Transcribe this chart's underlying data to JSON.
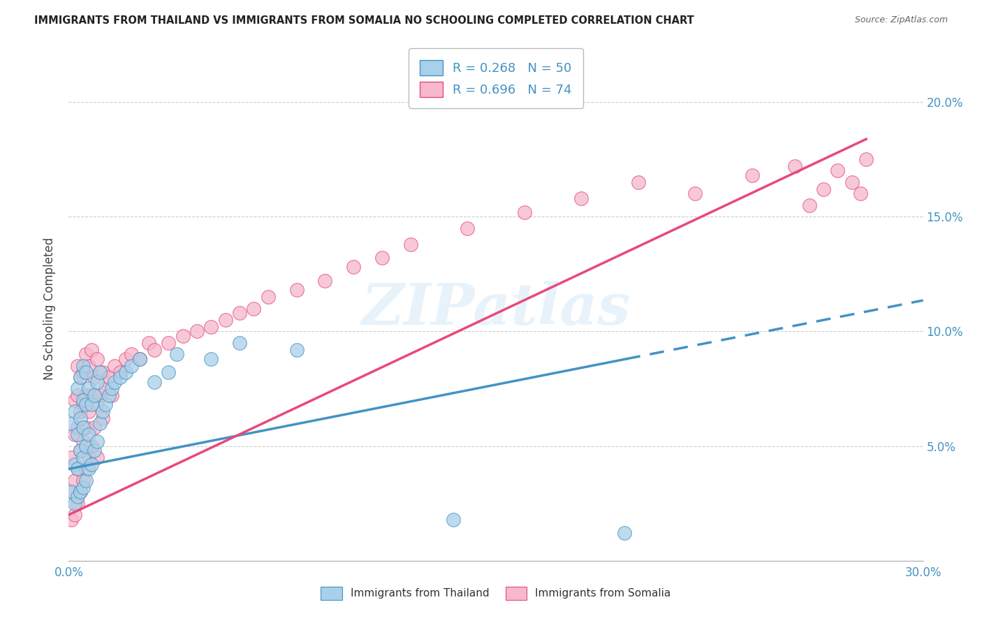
{
  "title": "IMMIGRANTS FROM THAILAND VS IMMIGRANTS FROM SOMALIA NO SCHOOLING COMPLETED CORRELATION CHART",
  "source": "Source: ZipAtlas.com",
  "ylabel": "No Schooling Completed",
  "xlim": [
    0.0,
    0.3
  ],
  "ylim": [
    0.0,
    0.22
  ],
  "xticks": [
    0.0,
    0.05,
    0.1,
    0.15,
    0.2,
    0.25,
    0.3
  ],
  "yticks": [
    0.0,
    0.05,
    0.1,
    0.15,
    0.2
  ],
  "thailand_R": 0.268,
  "thailand_N": 50,
  "somalia_R": 0.696,
  "somalia_N": 74,
  "thailand_color": "#a8d0e8",
  "somalia_color": "#f5b8cc",
  "thailand_line_color": "#4393c3",
  "somalia_line_color": "#e8497a",
  "watermark_text": "ZIPatlas",
  "thailand_scatter_x": [
    0.001,
    0.001,
    0.002,
    0.002,
    0.002,
    0.003,
    0.003,
    0.003,
    0.003,
    0.004,
    0.004,
    0.004,
    0.004,
    0.005,
    0.005,
    0.005,
    0.005,
    0.005,
    0.006,
    0.006,
    0.006,
    0.006,
    0.007,
    0.007,
    0.007,
    0.008,
    0.008,
    0.009,
    0.009,
    0.01,
    0.01,
    0.011,
    0.011,
    0.012,
    0.013,
    0.014,
    0.015,
    0.016,
    0.018,
    0.02,
    0.022,
    0.025,
    0.03,
    0.035,
    0.038,
    0.05,
    0.06,
    0.08,
    0.135,
    0.195
  ],
  "thailand_scatter_y": [
    0.03,
    0.06,
    0.025,
    0.042,
    0.065,
    0.028,
    0.04,
    0.055,
    0.075,
    0.03,
    0.048,
    0.062,
    0.08,
    0.032,
    0.045,
    0.058,
    0.07,
    0.085,
    0.035,
    0.05,
    0.068,
    0.082,
    0.04,
    0.055,
    0.075,
    0.042,
    0.068,
    0.048,
    0.072,
    0.052,
    0.078,
    0.06,
    0.082,
    0.065,
    0.068,
    0.072,
    0.075,
    0.078,
    0.08,
    0.082,
    0.085,
    0.088,
    0.078,
    0.082,
    0.09,
    0.088,
    0.095,
    0.092,
    0.018,
    0.012
  ],
  "somalia_scatter_x": [
    0.001,
    0.001,
    0.001,
    0.002,
    0.002,
    0.002,
    0.002,
    0.003,
    0.003,
    0.003,
    0.003,
    0.003,
    0.004,
    0.004,
    0.004,
    0.004,
    0.005,
    0.005,
    0.005,
    0.005,
    0.006,
    0.006,
    0.006,
    0.006,
    0.007,
    0.007,
    0.007,
    0.008,
    0.008,
    0.008,
    0.009,
    0.009,
    0.01,
    0.01,
    0.01,
    0.011,
    0.012,
    0.012,
    0.013,
    0.014,
    0.015,
    0.016,
    0.018,
    0.02,
    0.022,
    0.025,
    0.028,
    0.03,
    0.035,
    0.04,
    0.045,
    0.05,
    0.055,
    0.06,
    0.065,
    0.07,
    0.08,
    0.09,
    0.1,
    0.11,
    0.12,
    0.14,
    0.16,
    0.18,
    0.2,
    0.22,
    0.24,
    0.255,
    0.26,
    0.265,
    0.27,
    0.275,
    0.278,
    0.28
  ],
  "somalia_scatter_y": [
    0.018,
    0.03,
    0.045,
    0.02,
    0.035,
    0.055,
    0.07,
    0.025,
    0.04,
    0.058,
    0.072,
    0.085,
    0.03,
    0.048,
    0.065,
    0.08,
    0.035,
    0.052,
    0.068,
    0.082,
    0.04,
    0.058,
    0.072,
    0.09,
    0.045,
    0.065,
    0.085,
    0.05,
    0.072,
    0.092,
    0.058,
    0.08,
    0.045,
    0.068,
    0.088,
    0.072,
    0.062,
    0.082,
    0.075,
    0.08,
    0.072,
    0.085,
    0.082,
    0.088,
    0.09,
    0.088,
    0.095,
    0.092,
    0.095,
    0.098,
    0.1,
    0.102,
    0.105,
    0.108,
    0.11,
    0.115,
    0.118,
    0.122,
    0.128,
    0.132,
    0.138,
    0.145,
    0.152,
    0.158,
    0.165,
    0.16,
    0.168,
    0.172,
    0.155,
    0.162,
    0.17,
    0.165,
    0.16,
    0.175
  ],
  "thailand_line_intercept": 0.04,
  "thailand_line_slope": 0.245,
  "somalia_line_intercept": 0.02,
  "somalia_line_slope": 0.585
}
